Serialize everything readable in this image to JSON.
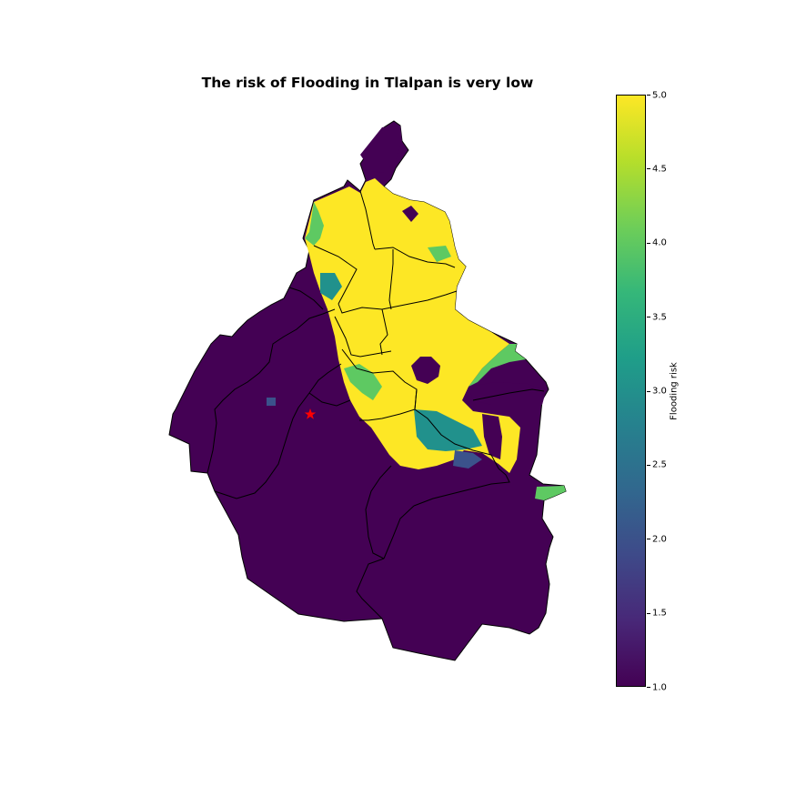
{
  "title": "The risk of Flooding in Tlalpan is very low",
  "colorbar": {
    "label": "Flooding risk",
    "min": 1.0,
    "max": 5.0,
    "ticks": [
      "1.0",
      "1.5",
      "2.0",
      "2.5",
      "3.0",
      "3.5",
      "4.0",
      "4.5",
      "5.0"
    ],
    "colormap": "viridis"
  },
  "colors": {
    "very_low": "#440154",
    "low": "#3b528b",
    "medium": "#21918c",
    "high": "#5ec962",
    "very_high": "#fde725",
    "marker": "#ff0000",
    "boundary": "#000000"
  },
  "marker": {
    "shape": "star",
    "district": "Tlalpan"
  }
}
